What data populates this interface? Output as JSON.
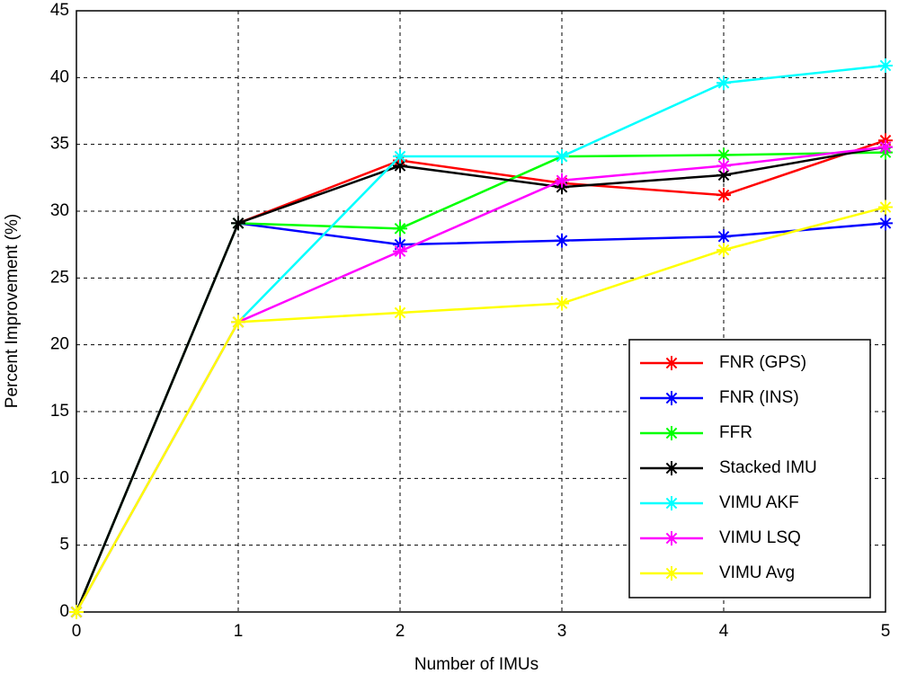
{
  "chart_data": {
    "type": "line",
    "x_label": "Number of IMUs",
    "y_label": "Percent Improvement (%)",
    "x": [
      0,
      1,
      2,
      3,
      4,
      5
    ],
    "xlim": [
      0,
      5
    ],
    "xticks": [
      0,
      1,
      2,
      3,
      4,
      5
    ],
    "ylim": [
      0,
      45
    ],
    "yticks": [
      0,
      5,
      10,
      15,
      20,
      25,
      30,
      35,
      40,
      45
    ],
    "grid": true,
    "legend": "lower right",
    "series": [
      {
        "name": "FNR (GPS)",
        "color": "#ff0000",
        "values": [
          0,
          29.1,
          33.8,
          32.1,
          31.2,
          35.3
        ]
      },
      {
        "name": "FNR (INS)",
        "color": "#0000ff",
        "values": [
          0,
          29.1,
          27.5,
          27.8,
          28.1,
          29.1
        ]
      },
      {
        "name": "FFR",
        "color": "#00ff00",
        "values": [
          0,
          29.1,
          28.7,
          34.1,
          34.2,
          34.4
        ]
      },
      {
        "name": "Stacked IMU",
        "color": "#000000",
        "values": [
          0,
          29.1,
          33.4,
          31.8,
          32.7,
          34.8
        ]
      },
      {
        "name": "VIMU AKF",
        "color": "#00ffff",
        "values": [
          0,
          21.7,
          34.1,
          34.1,
          39.6,
          40.9
        ]
      },
      {
        "name": "VIMU LSQ",
        "color": "#ff00ff",
        "values": [
          0,
          21.7,
          27.0,
          32.3,
          33.4,
          34.8
        ]
      },
      {
        "name": "VIMU Avg",
        "color": "#ffff00",
        "values": [
          0,
          21.7,
          22.4,
          23.1,
          27.1,
          30.3
        ]
      }
    ]
  }
}
